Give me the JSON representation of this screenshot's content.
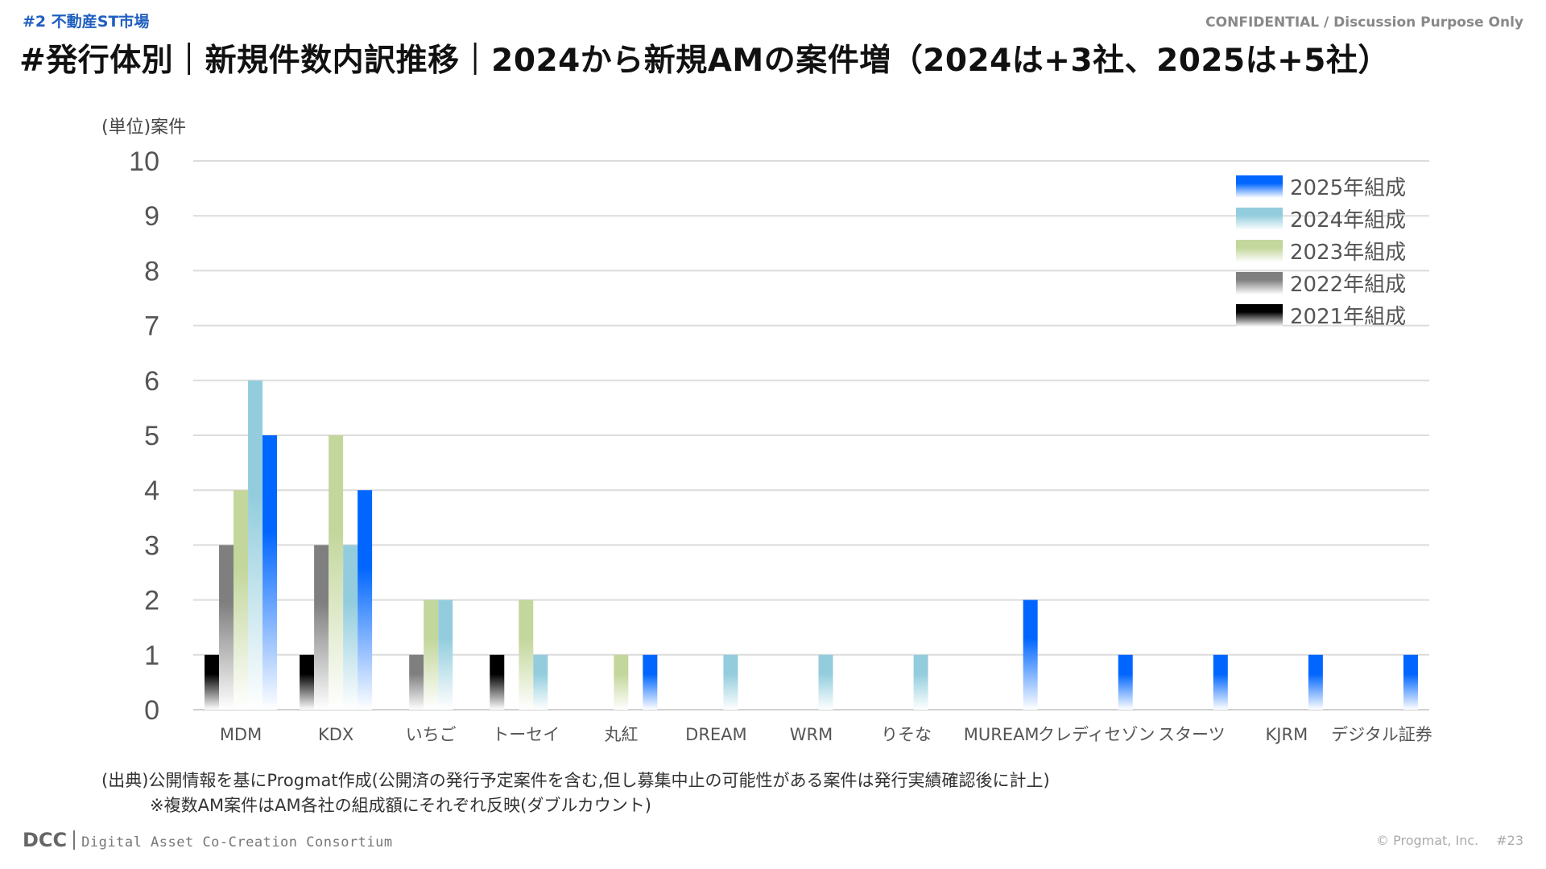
{
  "header": {
    "section_tag": "#2 不動産ST市場",
    "confidential": "CONFIDENTIAL / Discussion Purpose Only",
    "title": "#発行体別｜新規件数内訳推移｜2024から新規AMの案件増（2024は+3社、2025は+5社）"
  },
  "chart_data": {
    "type": "bar",
    "unit_label": "(単位)案件",
    "ylim": [
      0,
      10
    ],
    "yticks": [
      0,
      1,
      2,
      3,
      4,
      5,
      6,
      7,
      8,
      9,
      10
    ],
    "grid": true,
    "legend_position": "top-right",
    "categories": [
      "MDM",
      "KDX",
      "いちご",
      "トーセイ",
      "丸紅",
      "DREAM",
      "WRM",
      "りそな",
      "MUREAM",
      "クレディセゾン",
      "スターツ",
      "KJRM",
      "デジタル証券"
    ],
    "series": [
      {
        "name": "2021年組成",
        "color": "#000000",
        "values": [
          1,
          1,
          0,
          1,
          0,
          0,
          0,
          0,
          0,
          0,
          0,
          0,
          0
        ]
      },
      {
        "name": "2022年組成",
        "color": "#7f7f7f",
        "values": [
          3,
          3,
          1,
          0,
          0,
          0,
          0,
          0,
          0,
          0,
          0,
          0,
          0
        ]
      },
      {
        "name": "2023年組成",
        "color": "#c3d69b",
        "values": [
          4,
          5,
          2,
          2,
          1,
          0,
          0,
          0,
          0,
          0,
          0,
          0,
          0
        ]
      },
      {
        "name": "2024年組成",
        "color": "#93cddd",
        "values": [
          6,
          3,
          2,
          1,
          0,
          1,
          1,
          1,
          0,
          0,
          0,
          0,
          0
        ]
      },
      {
        "name": "2025年組成",
        "color": "#0066ff",
        "values": [
          5,
          4,
          0,
          0,
          1,
          0,
          0,
          0,
          2,
          1,
          1,
          1,
          1
        ]
      }
    ],
    "legend_order": [
      "2025年組成",
      "2024年組成",
      "2023年組成",
      "2022年組成",
      "2021年組成"
    ]
  },
  "source": {
    "line1": "(出典)公開情報を基にProgmat作成(公開済の発行予定案件を含む,但し募集中止の可能性がある案件は発行実績確認後に計上)",
    "line2": "※複数AM案件はAM各社の組成額にそれぞれ反映(ダブルカウント)"
  },
  "footer": {
    "logo": "DCC",
    "org": "Digital Asset Co-Creation Consortium",
    "copyright": "© Progmat, Inc.",
    "page": "#23"
  }
}
